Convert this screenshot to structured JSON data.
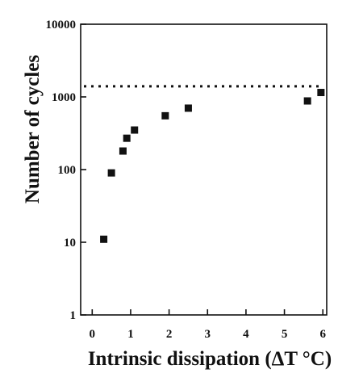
{
  "chart_data": {
    "type": "scatter",
    "xlabel": "Intrinsic dissipation (ΔT °C)",
    "ylabel": "Number of cycles",
    "x_scale": "linear",
    "y_scale": "log",
    "xlim": [
      -0.3,
      6.1
    ],
    "ylim": [
      1,
      10000
    ],
    "x_ticks": [
      0,
      1,
      2,
      3,
      4,
      5,
      6
    ],
    "x_tick_labels": [
      "0",
      "1",
      "2",
      "3",
      "4",
      "5",
      "6"
    ],
    "y_ticks": [
      1,
      10,
      100,
      1000,
      10000
    ],
    "y_tick_labels": [
      "1",
      "10",
      "100",
      "1000",
      "10000"
    ],
    "grid": false,
    "marker": "square",
    "series": [
      {
        "points": [
          {
            "x": 0.3,
            "y": 11
          },
          {
            "x": 0.5,
            "y": 90
          },
          {
            "x": 0.8,
            "y": 180
          },
          {
            "x": 0.9,
            "y": 270
          },
          {
            "x": 1.1,
            "y": 350
          },
          {
            "x": 1.9,
            "y": 550
          },
          {
            "x": 2.5,
            "y": 700
          },
          {
            "x": 5.6,
            "y": 880
          },
          {
            "x": 5.95,
            "y": 1150
          }
        ]
      }
    ],
    "reference_line": {
      "y": 1400,
      "style": "dotted"
    },
    "colors": {
      "marker": "#111111",
      "axis": "#111111",
      "reference_line": "#111111"
    }
  }
}
